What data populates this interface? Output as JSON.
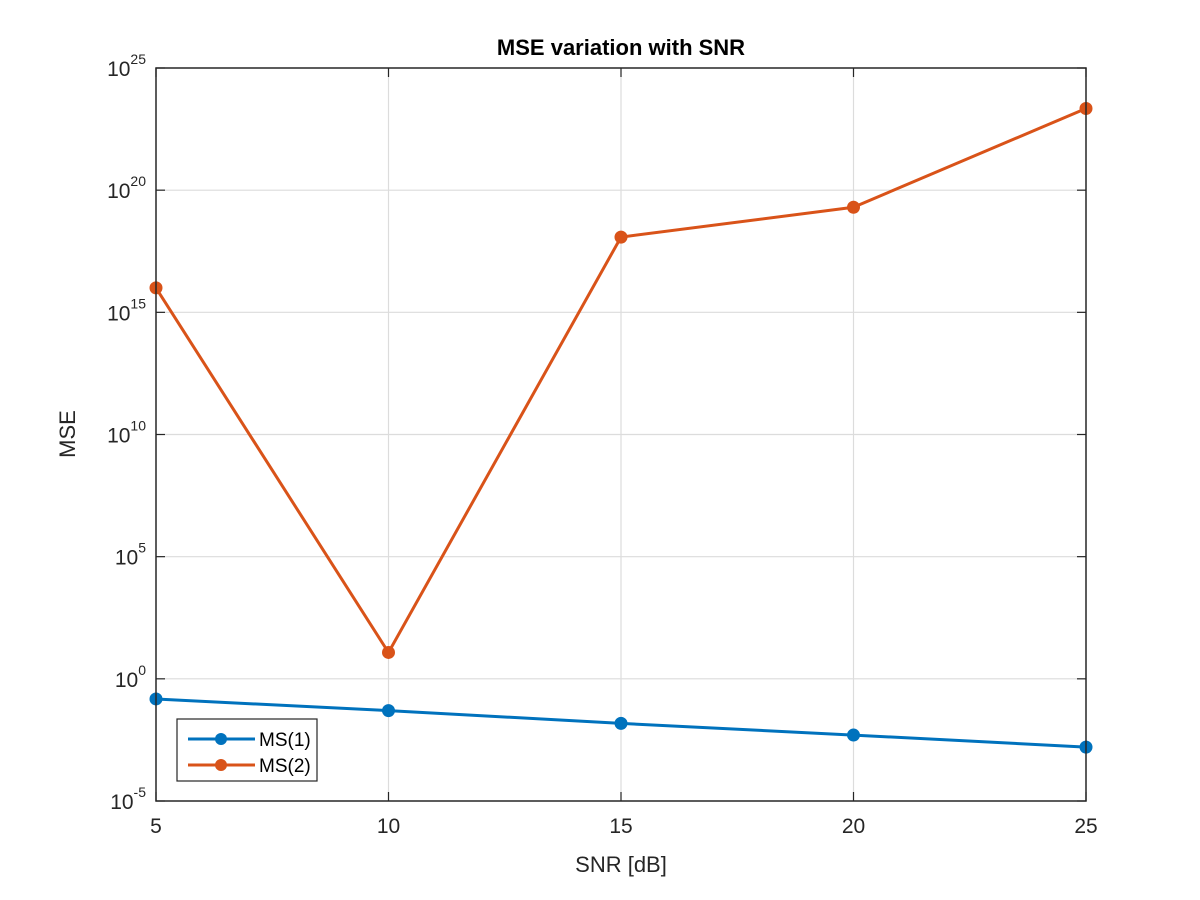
{
  "chart_data": {
    "type": "line",
    "title": "MSE variation with SNR",
    "xlabel": "SNR [dB]",
    "ylabel": "MSE",
    "x": [
      5,
      10,
      15,
      20,
      25
    ],
    "xlim": [
      5,
      25
    ],
    "xticks": [
      5,
      10,
      15,
      20,
      25
    ],
    "yscale": "log",
    "ylim": [
      1e-05,
      1e+25
    ],
    "yticks": [
      {
        "base": "10",
        "exp": "-5",
        "value": 1e-05
      },
      {
        "base": "10",
        "exp": "0",
        "value": 1
      },
      {
        "base": "10",
        "exp": "5",
        "value": 100000.0
      },
      {
        "base": "10",
        "exp": "10",
        "value": 10000000000.0
      },
      {
        "base": "10",
        "exp": "15",
        "value": 1000000000000000.0
      },
      {
        "base": "10",
        "exp": "20",
        "value": 1e+20
      },
      {
        "base": "10",
        "exp": "25",
        "value": 1e+25
      }
    ],
    "grid": true,
    "legend_position": "bottom-left",
    "series": [
      {
        "name": "MS(1)",
        "color": "#0072BD",
        "marker": "circle",
        "values": [
          0.15,
          0.05,
          0.015,
          0.005,
          0.0016
        ]
      },
      {
        "name": "MS(2)",
        "color": "#D95319",
        "marker": "circle",
        "values": [
          1e+16,
          12.0,
          1.2e+18,
          2e+19,
          2.2e+23
        ]
      }
    ]
  }
}
